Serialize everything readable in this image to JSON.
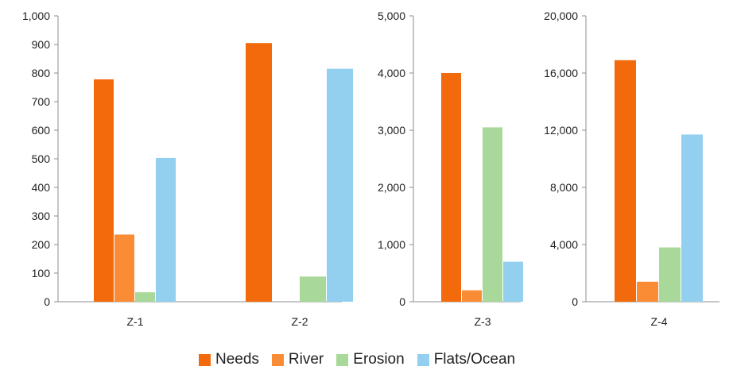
{
  "legend": [
    {
      "name": "Needs",
      "color": "#f26a0b"
    },
    {
      "name": "River",
      "color": "#fb8c36"
    },
    {
      "name": "Erosion",
      "color": "#a8d99a"
    },
    {
      "name": "Flats/Ocean",
      "color": "#93d0ef"
    }
  ],
  "chart_data": [
    {
      "type": "bar",
      "categories": [
        "Z-1",
        "Z-2"
      ],
      "ylim": [
        0,
        1000
      ],
      "ticks": [
        "0",
        "100",
        "200",
        "300",
        "400",
        "500",
        "600",
        "700",
        "800",
        "900",
        "1,000"
      ],
      "tick_values": [
        0,
        100,
        200,
        300,
        400,
        500,
        600,
        700,
        800,
        900,
        1000
      ],
      "series": [
        {
          "name": "Needs",
          "values": [
            778,
            905
          ]
        },
        {
          "name": "River",
          "values": [
            235,
            0
          ]
        },
        {
          "name": "Erosion",
          "values": [
            33,
            88
          ]
        },
        {
          "name": "Flats/Ocean",
          "values": [
            503,
            815
          ]
        }
      ]
    },
    {
      "type": "bar",
      "categories": [
        "Z-3"
      ],
      "ylim": [
        0,
        5000
      ],
      "ticks": [
        "0",
        "1,000",
        "2,000",
        "3,000",
        "4,000",
        "5,000"
      ],
      "tick_values": [
        0,
        1000,
        2000,
        3000,
        4000,
        5000
      ],
      "series": [
        {
          "name": "Needs",
          "values": [
            4000
          ]
        },
        {
          "name": "River",
          "values": [
            200
          ]
        },
        {
          "name": "Erosion",
          "values": [
            3050
          ]
        },
        {
          "name": "Flats/Ocean",
          "values": [
            700
          ]
        }
      ]
    },
    {
      "type": "bar",
      "categories": [
        "Z-4"
      ],
      "ylim": [
        0,
        20000
      ],
      "ticks": [
        "0",
        "4,000",
        "8,000",
        "12,000",
        "16,000",
        "20,000"
      ],
      "tick_values": [
        0,
        4000,
        8000,
        12000,
        16000,
        20000
      ],
      "series": [
        {
          "name": "Needs",
          "values": [
            16900
          ]
        },
        {
          "name": "River",
          "values": [
            1400
          ]
        },
        {
          "name": "Erosion",
          "values": [
            3800
          ]
        },
        {
          "name": "Flats/Ocean",
          "values": [
            11700
          ]
        }
      ]
    }
  ]
}
